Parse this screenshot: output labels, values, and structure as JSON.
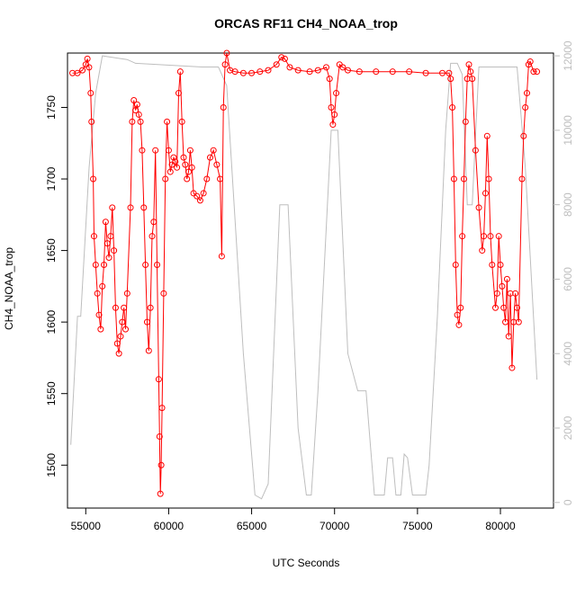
{
  "chart_data": {
    "type": "line",
    "title": "ORCAS RF11 CH4_NOAA_trop",
    "x_label": "UTC Seconds",
    "y_label": "CH4_NOAA_trop",
    "xlim": [
      53900,
      83200
    ],
    "xticks": [
      55000,
      60000,
      65000,
      70000,
      75000,
      80000
    ],
    "ylim": [
      1470,
      1788
    ],
    "yticks": [
      1500,
      1550,
      1600,
      1650,
      1700,
      1750
    ],
    "y2lim": [
      -150,
      12075
    ],
    "y2ticks": [
      0,
      2000,
      4000,
      6000,
      8000,
      10000,
      12000
    ],
    "series": [
      {
        "color": "#bebebe",
        "axis": "y2",
        "x": [
          54100,
          54500,
          54700,
          55200,
          55600,
          56000,
          57500,
          58000,
          62000,
          63000,
          63500,
          64500,
          65200,
          65600,
          66000,
          66700,
          67200,
          67800,
          68300,
          68600,
          69000,
          69800,
          70200,
          70800,
          71400,
          71900,
          72400,
          73000,
          73200,
          73500,
          73700,
          74000,
          74200,
          74400,
          74700,
          75500,
          75700,
          76200,
          76700,
          77000,
          77400,
          77700,
          78000,
          78300,
          78700,
          80200,
          81000,
          81500,
          82200
        ],
        "values": [
          1550,
          5000,
          5000,
          9000,
          11000,
          12000,
          11900,
          11800,
          11700,
          11700,
          11200,
          4000,
          200,
          100,
          500,
          8000,
          8000,
          2000,
          200,
          200,
          3000,
          10000,
          10000,
          4000,
          3000,
          3000,
          200,
          200,
          1200,
          1200,
          200,
          200,
          1300,
          1200,
          200,
          200,
          1000,
          5000,
          10000,
          11800,
          11800,
          11500,
          8000,
          8000,
          11700,
          11700,
          11700,
          9000,
          3300
        ]
      },
      {
        "color": "#ff0000",
        "axis": "y",
        "markers": true,
        "x": [
          54200,
          54500,
          54800,
          55000,
          55100,
          55200,
          55300,
          55350,
          55450,
          55500,
          55600,
          55700,
          55800,
          55900,
          56000,
          56100,
          56200,
          56300,
          56400,
          56500,
          56600,
          56700,
          56800,
          56900,
          57000,
          57100,
          57200,
          57300,
          57400,
          57500,
          57700,
          57800,
          57900,
          58000,
          58100,
          58200,
          58300,
          58400,
          58500,
          58600,
          58700,
          58800,
          58900,
          59000,
          59100,
          59200,
          59300,
          59400,
          59450,
          59500,
          59550,
          59600,
          59700,
          59800,
          59900,
          60000,
          60100,
          60200,
          60300,
          60400,
          60500,
          60600,
          60700,
          60800,
          60900,
          61000,
          61100,
          61200,
          61300,
          61400,
          61500,
          61700,
          61900,
          62100,
          62300,
          62500,
          62700,
          62900,
          63100,
          63200,
          63300,
          63400,
          63500,
          63700,
          64000,
          64500,
          65000,
          65500,
          66000,
          66500,
          66800,
          67000,
          67300,
          67800,
          68500,
          69000,
          69500,
          69700,
          69800,
          69900,
          70000,
          70100,
          70300,
          70500,
          70800,
          71500,
          72500,
          73500,
          74500,
          75500,
          76500,
          76900,
          77000,
          77100,
          77200,
          77300,
          77400,
          77500,
          77600,
          77700,
          77800,
          77900,
          78000,
          78100,
          78200,
          78300,
          78500,
          78700,
          78900,
          79000,
          79100,
          79200,
          79300,
          79400,
          79500,
          79700,
          79800,
          79900,
          80000,
          80100,
          80200,
          80300,
          80400,
          80500,
          80600,
          80700,
          80800,
          80900,
          81000,
          81100,
          81300,
          81400,
          81500,
          81600,
          81700,
          81800,
          82000,
          82200
        ],
        "values": [
          1774,
          1774,
          1776,
          1780,
          1784,
          1778,
          1760,
          1740,
          1700,
          1660,
          1640,
          1620,
          1605,
          1595,
          1625,
          1640,
          1670,
          1655,
          1645,
          1660,
          1680,
          1650,
          1610,
          1585,
          1578,
          1590,
          1600,
          1610,
          1595,
          1620,
          1680,
          1740,
          1755,
          1748,
          1752,
          1745,
          1740,
          1720,
          1680,
          1640,
          1600,
          1580,
          1610,
          1660,
          1670,
          1720,
          1640,
          1560,
          1520,
          1480,
          1500,
          1540,
          1620,
          1700,
          1740,
          1720,
          1705,
          1710,
          1715,
          1712,
          1708,
          1760,
          1775,
          1740,
          1715,
          1710,
          1700,
          1705,
          1720,
          1708,
          1690,
          1688,
          1685,
          1690,
          1700,
          1715,
          1720,
          1710,
          1700,
          1646,
          1750,
          1780,
          1788,
          1776,
          1775,
          1774,
          1774,
          1775,
          1776,
          1780,
          1785,
          1784,
          1778,
          1776,
          1775,
          1776,
          1778,
          1770,
          1750,
          1738,
          1745,
          1760,
          1780,
          1778,
          1776,
          1775,
          1775,
          1775,
          1775,
          1774,
          1774,
          1774,
          1770,
          1750,
          1700,
          1640,
          1605,
          1598,
          1610,
          1660,
          1700,
          1740,
          1770,
          1780,
          1775,
          1770,
          1720,
          1680,
          1650,
          1660,
          1690,
          1730,
          1700,
          1660,
          1640,
          1610,
          1620,
          1660,
          1640,
          1625,
          1610,
          1600,
          1630,
          1590,
          1620,
          1568,
          1600,
          1620,
          1610,
          1600,
          1700,
          1730,
          1750,
          1760,
          1780,
          1782,
          1775,
          1775
        ]
      }
    ]
  }
}
